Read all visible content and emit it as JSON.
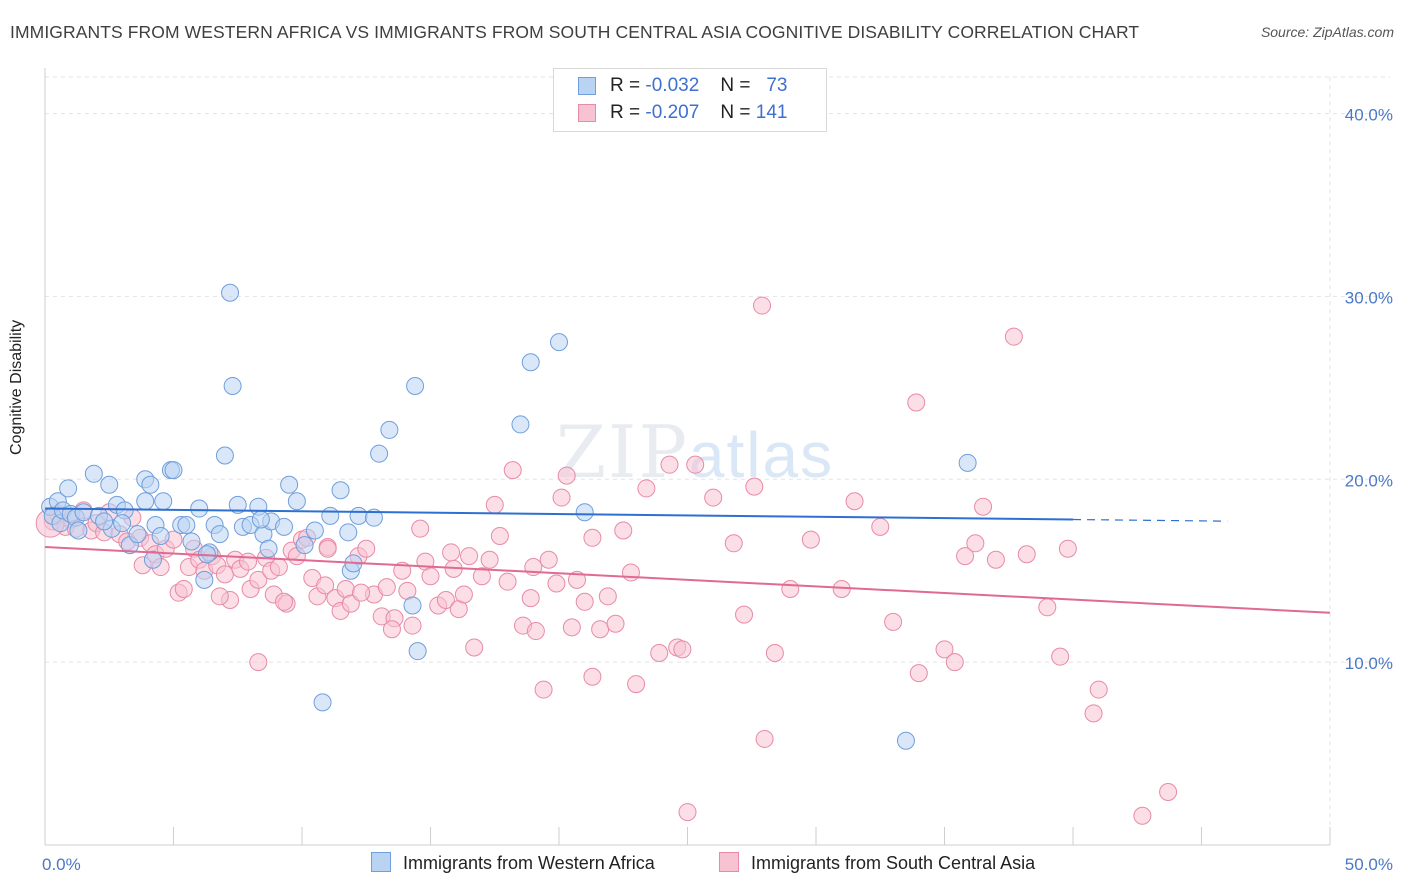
{
  "title": "IMMIGRANTS FROM WESTERN AFRICA VS IMMIGRANTS FROM SOUTH CENTRAL ASIA COGNITIVE DISABILITY CORRELATION CHART",
  "source": "Source: ZipAtlas.com",
  "watermark": {
    "zip": "ZIP",
    "atlas": "atlas"
  },
  "legend": {
    "rows": [
      {
        "r_label": "R =",
        "r_value": "-0.032",
        "n_label": "N =",
        "n_value": "73"
      },
      {
        "r_label": "R =",
        "r_value": "-0.207",
        "n_label": "N =",
        "n_value": "141"
      }
    ]
  },
  "colors": {
    "blue_fill": "#b9d3f2",
    "blue_stroke": "#6f9fdc",
    "blue_line": "#2f6fcf",
    "pink_fill": "#f7c2d2",
    "pink_stroke": "#e88aa8",
    "pink_line": "#e06a93",
    "tick_text": "#4a78c8",
    "grid": "#e3e3e3"
  },
  "chart_data": {
    "type": "scatter",
    "title": "IMMIGRANTS FROM WESTERN AFRICA VS IMMIGRANTS FROM SOUTH CENTRAL ASIA COGNITIVE DISABILITY CORRELATION CHART",
    "xlabel": "",
    "ylabel": "Cognitive Disability",
    "xlim": [
      0,
      50
    ],
    "ylim": [
      0,
      42
    ],
    "x_tick_labels": [
      "0.0%",
      "50.0%"
    ],
    "y_ticks": [
      10,
      20,
      30,
      40
    ],
    "y_tick_labels": [
      "10.0%",
      "20.0%",
      "30.0%",
      "40.0%"
    ],
    "grid": true,
    "legend_position": "top-center",
    "series": [
      {
        "name": "Immigrants from Western Africa",
        "color": "blue",
        "trend": {
          "x": [
            0,
            40
          ],
          "y": [
            18.4,
            17.8
          ],
          "dashed_to_x": 46
        },
        "points": [
          [
            0.2,
            18.5
          ],
          [
            0.3,
            18.0
          ],
          [
            0.5,
            18.8
          ],
          [
            0.6,
            17.6
          ],
          [
            0.7,
            18.3
          ],
          [
            0.9,
            19.5
          ],
          [
            1.0,
            18.1
          ],
          [
            1.2,
            17.9
          ],
          [
            1.3,
            17.2
          ],
          [
            1.5,
            18.2
          ],
          [
            1.9,
            20.3
          ],
          [
            2.1,
            18.0
          ],
          [
            2.5,
            19.7
          ],
          [
            2.6,
            17.3
          ],
          [
            2.8,
            18.6
          ],
          [
            3.1,
            18.3
          ],
          [
            3.3,
            16.4
          ],
          [
            3.6,
            17.0
          ],
          [
            3.9,
            18.8
          ],
          [
            3.9,
            20.0
          ],
          [
            4.1,
            19.7
          ],
          [
            4.2,
            15.6
          ],
          [
            4.3,
            17.5
          ],
          [
            4.5,
            16.9
          ],
          [
            4.6,
            18.8
          ],
          [
            4.9,
            20.5
          ],
          [
            5.0,
            20.5
          ],
          [
            5.3,
            17.5
          ],
          [
            5.5,
            17.5
          ],
          [
            5.7,
            16.6
          ],
          [
            6.0,
            18.4
          ],
          [
            6.2,
            14.5
          ],
          [
            6.4,
            16.0
          ],
          [
            6.6,
            17.5
          ],
          [
            6.8,
            17.0
          ],
          [
            7.0,
            21.3
          ],
          [
            7.2,
            30.2
          ],
          [
            7.3,
            25.1
          ],
          [
            7.5,
            18.6
          ],
          [
            7.7,
            17.4
          ],
          [
            8.0,
            17.5
          ],
          [
            8.3,
            18.5
          ],
          [
            8.5,
            17.0
          ],
          [
            8.7,
            16.2
          ],
          [
            8.8,
            17.7
          ],
          [
            9.3,
            17.4
          ],
          [
            9.5,
            19.7
          ],
          [
            9.8,
            18.8
          ],
          [
            10.1,
            16.4
          ],
          [
            10.5,
            17.2
          ],
          [
            11.1,
            18.0
          ],
          [
            11.5,
            19.4
          ],
          [
            11.8,
            17.1
          ],
          [
            11.9,
            15.0
          ],
          [
            12.0,
            15.4
          ],
          [
            12.2,
            18.0
          ],
          [
            12.8,
            17.9
          ],
          [
            13.0,
            21.4
          ],
          [
            13.4,
            22.7
          ],
          [
            14.3,
            13.1
          ],
          [
            14.4,
            25.1
          ],
          [
            14.5,
            10.6
          ],
          [
            18.5,
            23.0
          ],
          [
            18.9,
            26.4
          ],
          [
            20.0,
            27.5
          ],
          [
            21.0,
            18.2
          ],
          [
            10.8,
            7.8
          ],
          [
            33.5,
            5.7
          ],
          [
            35.9,
            20.9
          ],
          [
            8.4,
            17.8
          ],
          [
            6.3,
            15.9
          ],
          [
            3.0,
            17.6
          ],
          [
            2.3,
            17.7
          ]
        ]
      },
      {
        "name": "Immigrants from South Central Asia",
        "color": "pink",
        "trend": {
          "x": [
            0,
            50
          ],
          "y": [
            16.3,
            12.7
          ]
        },
        "points": [
          [
            0.3,
            17.7
          ],
          [
            0.5,
            18.1
          ],
          [
            0.8,
            17.4
          ],
          [
            1.0,
            17.8
          ],
          [
            1.2,
            17.3
          ],
          [
            1.5,
            18.3
          ],
          [
            1.8,
            17.2
          ],
          [
            2.0,
            17.6
          ],
          [
            2.3,
            17.1
          ],
          [
            2.5,
            18.2
          ],
          [
            2.9,
            17.0
          ],
          [
            3.2,
            16.6
          ],
          [
            3.4,
            17.9
          ],
          [
            3.7,
            16.8
          ],
          [
            3.8,
            15.3
          ],
          [
            4.1,
            16.5
          ],
          [
            4.3,
            15.9
          ],
          [
            4.5,
            15.2
          ],
          [
            4.7,
            16.2
          ],
          [
            5.0,
            16.7
          ],
          [
            5.2,
            13.8
          ],
          [
            5.4,
            14.0
          ],
          [
            5.6,
            15.2
          ],
          [
            5.8,
            16.2
          ],
          [
            6.0,
            15.6
          ],
          [
            6.2,
            15.0
          ],
          [
            6.5,
            15.8
          ],
          [
            6.7,
            15.3
          ],
          [
            7.0,
            14.8
          ],
          [
            7.2,
            13.4
          ],
          [
            7.4,
            15.6
          ],
          [
            7.6,
            15.1
          ],
          [
            7.9,
            15.5
          ],
          [
            8.0,
            14.0
          ],
          [
            8.3,
            14.5
          ],
          [
            8.6,
            15.7
          ],
          [
            8.8,
            15.0
          ],
          [
            8.9,
            13.7
          ],
          [
            9.1,
            15.2
          ],
          [
            9.4,
            13.2
          ],
          [
            9.6,
            16.1
          ],
          [
            9.8,
            15.8
          ],
          [
            10.0,
            16.7
          ],
          [
            10.2,
            16.8
          ],
          [
            10.4,
            14.6
          ],
          [
            10.6,
            13.6
          ],
          [
            10.9,
            14.2
          ],
          [
            11.0,
            16.3
          ],
          [
            11.3,
            13.5
          ],
          [
            11.5,
            12.8
          ],
          [
            11.7,
            14.0
          ],
          [
            11.9,
            13.2
          ],
          [
            12.2,
            15.8
          ],
          [
            12.5,
            16.2
          ],
          [
            12.8,
            13.7
          ],
          [
            13.1,
            12.5
          ],
          [
            13.3,
            14.1
          ],
          [
            13.6,
            12.4
          ],
          [
            13.9,
            15.0
          ],
          [
            14.1,
            13.9
          ],
          [
            14.3,
            12.0
          ],
          [
            14.6,
            17.3
          ],
          [
            14.8,
            15.5
          ],
          [
            15.0,
            14.7
          ],
          [
            15.3,
            13.1
          ],
          [
            15.6,
            13.4
          ],
          [
            15.9,
            15.1
          ],
          [
            16.1,
            12.9
          ],
          [
            16.3,
            13.7
          ],
          [
            16.5,
            15.8
          ],
          [
            16.7,
            10.8
          ],
          [
            17.0,
            14.7
          ],
          [
            17.3,
            15.6
          ],
          [
            17.5,
            18.6
          ],
          [
            17.7,
            16.9
          ],
          [
            18.2,
            20.5
          ],
          [
            18.6,
            12.0
          ],
          [
            18.9,
            13.5
          ],
          [
            19.1,
            11.7
          ],
          [
            19.4,
            8.5
          ],
          [
            19.6,
            15.6
          ],
          [
            19.9,
            14.3
          ],
          [
            20.1,
            19.0
          ],
          [
            20.3,
            20.2
          ],
          [
            20.5,
            11.9
          ],
          [
            20.7,
            14.5
          ],
          [
            21.0,
            13.3
          ],
          [
            21.3,
            16.8
          ],
          [
            21.6,
            11.8
          ],
          [
            21.9,
            13.6
          ],
          [
            22.2,
            12.1
          ],
          [
            22.5,
            17.2
          ],
          [
            22.8,
            14.9
          ],
          [
            23.0,
            8.8
          ],
          [
            23.4,
            19.5
          ],
          [
            23.9,
            10.5
          ],
          [
            24.3,
            20.8
          ],
          [
            24.6,
            10.8
          ],
          [
            24.8,
            10.7
          ],
          [
            25.3,
            20.8
          ],
          [
            26.0,
            19.0
          ],
          [
            26.8,
            16.5
          ],
          [
            27.2,
            12.6
          ],
          [
            27.6,
            19.6
          ],
          [
            27.9,
            29.5
          ],
          [
            28.4,
            10.5
          ],
          [
            29.0,
            14.0
          ],
          [
            29.8,
            16.7
          ],
          [
            31.0,
            14.0
          ],
          [
            32.5,
            17.4
          ],
          [
            33.0,
            12.2
          ],
          [
            33.9,
            24.2
          ],
          [
            35.0,
            10.7
          ],
          [
            35.4,
            10.0
          ],
          [
            35.8,
            15.8
          ],
          [
            36.2,
            16.5
          ],
          [
            36.5,
            18.5
          ],
          [
            37.0,
            15.6
          ],
          [
            37.7,
            27.8
          ],
          [
            38.2,
            15.9
          ],
          [
            39.0,
            13.0
          ],
          [
            39.5,
            10.3
          ],
          [
            39.8,
            16.2
          ],
          [
            40.8,
            7.2
          ],
          [
            41.0,
            8.5
          ],
          [
            42.7,
            1.6
          ],
          [
            43.7,
            2.9
          ],
          [
            18.0,
            14.4
          ],
          [
            12.3,
            13.8
          ],
          [
            6.8,
            13.6
          ],
          [
            25.0,
            1.8
          ],
          [
            28.0,
            5.8
          ],
          [
            34.0,
            9.4
          ],
          [
            15.8,
            16.0
          ],
          [
            11.0,
            16.2
          ],
          [
            9.3,
            13.3
          ],
          [
            13.5,
            11.8
          ],
          [
            21.3,
            9.2
          ],
          [
            8.3,
            10.0
          ],
          [
            31.5,
            18.8
          ],
          [
            19.0,
            15.2
          ]
        ]
      }
    ]
  },
  "bottom_legend": [
    {
      "label": "Immigrants from Western Africa"
    },
    {
      "label": "Immigrants from South Central Asia"
    }
  ]
}
